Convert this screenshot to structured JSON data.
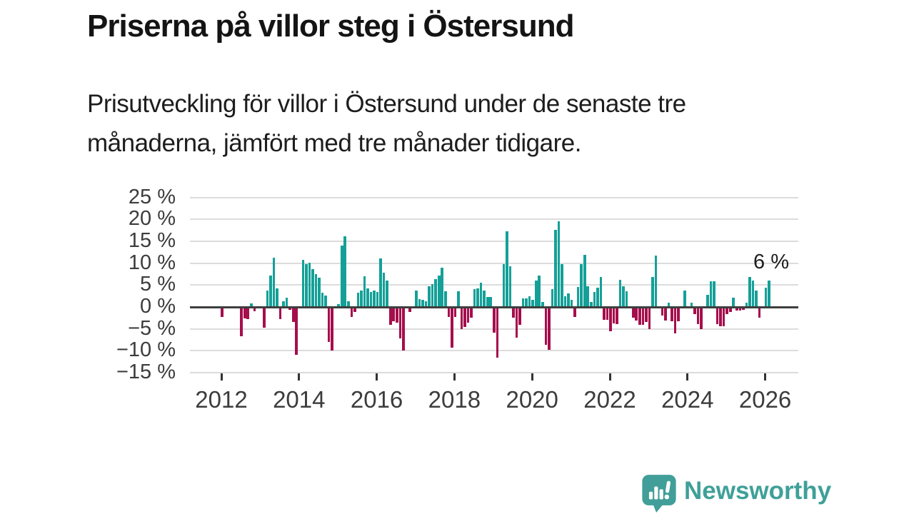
{
  "header": {
    "title": "Priserna på villor steg i Östersund",
    "subtitle_line1": "Prisutveckling för villor i Östersund under de senaste tre",
    "subtitle_line2": "månaderna, jämfört med tre månader tidigare."
  },
  "annotation": "6 %",
  "logo": {
    "text": "Newsworthy"
  },
  "colors": {
    "positive_bar": "#14a098",
    "negative_bar": "#a50e4c",
    "gridline": "#dcdcdc",
    "zero_line": "#3e3e3e",
    "axis_text": "#3c3c3c",
    "logo_teal": "#419e98"
  },
  "chart_data": {
    "type": "bar",
    "title": "Prisutveckling för villor i Östersund, tre månader jämfört med tre månader tidigare",
    "unit": "%",
    "frequency": "monthly",
    "start": "2012-01",
    "end": "2026-02",
    "xlabel": "",
    "ylabel": "",
    "ylim": [
      -15,
      25
    ],
    "grid": true,
    "legend": "none",
    "last_value_label": "6 %",
    "y_ticks": [
      {
        "value": 25,
        "label": "25 %"
      },
      {
        "value": 20,
        "label": "20 %"
      },
      {
        "value": 15,
        "label": "15 %"
      },
      {
        "value": 10,
        "label": "10 %"
      },
      {
        "value": 5,
        "label": "5 %"
      },
      {
        "value": 0,
        "label": "0 %"
      },
      {
        "value": -5,
        "label": "−5 %"
      },
      {
        "value": -10,
        "label": "−10 %"
      },
      {
        "value": -15,
        "label": "−15 %"
      }
    ],
    "x_ticks": [
      {
        "year": 2012,
        "label": "2012"
      },
      {
        "year": 2014,
        "label": "2014"
      },
      {
        "year": 2016,
        "label": "2016"
      },
      {
        "year": 2018,
        "label": "2018"
      },
      {
        "year": 2020,
        "label": "2020"
      },
      {
        "year": 2022,
        "label": "2022"
      },
      {
        "year": 2024,
        "label": "2024"
      },
      {
        "year": 2026,
        "label": "2026"
      }
    ],
    "values": [
      -2.3,
      0,
      0,
      0,
      0,
      0,
      -6.7,
      -2.6,
      -2.8,
      0.8,
      -0.9,
      0,
      0,
      -4.8,
      3.7,
      7.1,
      11.3,
      4.2,
      -2.7,
      1.3,
      2.1,
      -0.7,
      -3.5,
      -10.9,
      0,
      10.8,
      9.7,
      10.1,
      8.6,
      7.5,
      6.7,
      3.2,
      2.6,
      -8.0,
      -10.0,
      0,
      0.7,
      14.0,
      16.2,
      1.3,
      -2.2,
      -1.1,
      3.3,
      3.7,
      7.0,
      4.2,
      3.5,
      3.7,
      3.4,
      11.0,
      7.8,
      6.1,
      -4.0,
      -3.3,
      -3.6,
      -7.2,
      -9.9,
      0,
      -1.2,
      0,
      3.8,
      1.8,
      1.7,
      1.3,
      4.7,
      5.2,
      6.4,
      7.2,
      9.0,
      3.6,
      -2.2,
      -9.3,
      -2.2,
      3.6,
      -5.0,
      -4.5,
      -3.6,
      -2.4,
      4.1,
      4.3,
      5.6,
      3.8,
      2.2,
      2.3,
      -5.9,
      -11.5,
      0,
      9.8,
      17.3,
      9.3,
      -2.5,
      -7.0,
      -4.0,
      2.0,
      2.0,
      2.4,
      1.7,
      6.0,
      7.1,
      1.1,
      -8.7,
      -9.7,
      4.0,
      17.6,
      19.6,
      9.8,
      2.4,
      3.1,
      1.7,
      -2.3,
      4.6,
      9.8,
      11.9,
      4.8,
      1.2,
      3.5,
      4.4,
      6.8,
      -2.9,
      -2.9,
      -5.5,
      -3.8,
      -3.9,
      6.2,
      4.8,
      3.6,
      0,
      -2.4,
      -3.1,
      -4.1,
      -4.1,
      -3.5,
      -5.0,
      6.8,
      11.8,
      0,
      -2.0,
      -3.1,
      1.0,
      -3.3,
      -6.1,
      -3.2,
      0,
      3.8,
      0,
      1.0,
      -1.6,
      -3.9,
      -5.0,
      0,
      2.7,
      5.9,
      5.9,
      -3.9,
      -4.4,
      -4.4,
      -1.7,
      -1.2,
      2.1,
      -0.8,
      -0.8,
      -0.7,
      1.0,
      6.9,
      6.0,
      3.8,
      -2.5,
      0,
      4.4,
      6.0
    ]
  }
}
